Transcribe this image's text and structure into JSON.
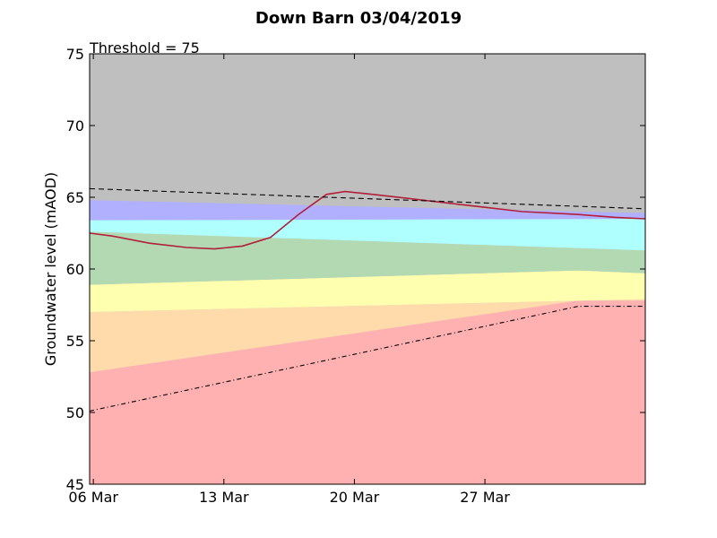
{
  "chart_data": {
    "type": "area",
    "title": "Down Barn 03/04/2019",
    "ylabel": "Groundwater level (mAOD)",
    "xlabel": "",
    "ylim": [
      45,
      75
    ],
    "yticks": [
      45,
      50,
      55,
      60,
      65,
      70,
      75
    ],
    "x_range_days": [
      -0.2,
      29.6
    ],
    "xticks": [
      {
        "day": 0,
        "label": "06 Mar"
      },
      {
        "day": 7,
        "label": "13 Mar"
      },
      {
        "day": 14,
        "label": "20 Mar"
      },
      {
        "day": 21,
        "label": "27 Mar"
      }
    ],
    "annotation": "Threshold = 75",
    "grid": false,
    "background_color": "#bfbfbf",
    "bands": [
      {
        "color": "#ffb0b0",
        "lower": [
          [
            -0.2,
            45
          ],
          [
            29.6,
            45
          ]
        ],
        "upper": [
          [
            -0.2,
            52.8
          ],
          [
            26.0,
            57.8
          ],
          [
            29.6,
            57.8
          ]
        ]
      },
      {
        "color": "#ffdbab",
        "lower": [
          [
            -0.2,
            52.8
          ],
          [
            26.0,
            57.8
          ],
          [
            29.6,
            57.8
          ]
        ],
        "upper": [
          [
            -0.2,
            57.0
          ],
          [
            29.6,
            57.9
          ]
        ]
      },
      {
        "color": "#ffffb0",
        "lower": [
          [
            -0.2,
            57.0
          ],
          [
            29.6,
            57.9
          ]
        ],
        "upper": [
          [
            -0.2,
            58.9
          ],
          [
            26.0,
            59.9
          ],
          [
            29.6,
            59.7
          ]
        ]
      },
      {
        "color": "#b2d9b2",
        "lower": [
          [
            -0.2,
            58.9
          ],
          [
            26.0,
            59.9
          ],
          [
            29.6,
            59.7
          ]
        ],
        "upper": [
          [
            -0.2,
            62.6
          ],
          [
            29.6,
            61.3
          ]
        ]
      },
      {
        "color": "#b0ffff",
        "lower": [
          [
            -0.2,
            62.6
          ],
          [
            29.6,
            61.3
          ]
        ],
        "upper": [
          [
            -0.2,
            63.4
          ],
          [
            29.6,
            63.5
          ]
        ]
      },
      {
        "color": "#b0b0ff",
        "lower": [
          [
            -0.2,
            63.4
          ],
          [
            29.6,
            63.5
          ]
        ],
        "upper": [
          [
            -0.2,
            64.8
          ],
          [
            29.6,
            63.9
          ]
        ]
      }
    ],
    "series": [
      {
        "style": "solid",
        "color": "#b0203a",
        "points": [
          [
            -0.2,
            62.5
          ],
          [
            1.0,
            62.3
          ],
          [
            3.0,
            61.8
          ],
          [
            5.0,
            61.5
          ],
          [
            6.5,
            61.4
          ],
          [
            8.0,
            61.6
          ],
          [
            9.5,
            62.2
          ],
          [
            11.0,
            63.8
          ],
          [
            12.5,
            65.2
          ],
          [
            13.5,
            65.4
          ],
          [
            15.0,
            65.2
          ],
          [
            17.0,
            64.9
          ],
          [
            19.0,
            64.6
          ],
          [
            21.0,
            64.3
          ],
          [
            23.0,
            64.0
          ],
          [
            26.0,
            63.8
          ],
          [
            28.0,
            63.6
          ],
          [
            29.6,
            63.5
          ]
        ]
      },
      {
        "style": "dashed",
        "color": "#000000",
        "points": [
          [
            -0.2,
            65.6
          ],
          [
            29.6,
            64.2
          ]
        ]
      },
      {
        "style": "dashdot",
        "color": "#000000",
        "points": [
          [
            -0.2,
            50.1
          ],
          [
            26.0,
            57.4
          ],
          [
            29.6,
            57.4
          ]
        ]
      }
    ]
  }
}
